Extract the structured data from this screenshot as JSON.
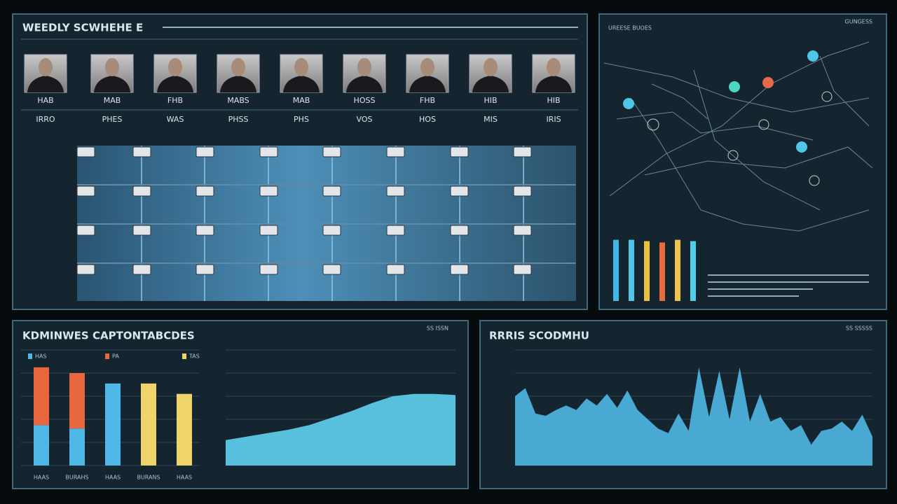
{
  "schedule": {
    "title": "WEEDLY SCWHEHE E",
    "people": [
      {
        "name": "HAB",
        "tag": "IRRO"
      },
      {
        "name": "MAB",
        "tag": "PHES"
      },
      {
        "name": "FHB",
        "tag": "WAS"
      },
      {
        "name": "MABS",
        "tag": "PHSS"
      },
      {
        "name": "MAB",
        "tag": "PHS"
      },
      {
        "name": "HOSS",
        "tag": "VOS"
      },
      {
        "name": "FHB",
        "tag": "HOS"
      },
      {
        "name": "HIB",
        "tag": "MIS"
      },
      {
        "name": "HIB",
        "tag": "IRIS"
      }
    ]
  },
  "map": {
    "title": "UREESE BUOES",
    "badge": "GUNGESS",
    "chart_data": {
      "type": "bar",
      "values": [
        92,
        92,
        90,
        88,
        92,
        90
      ],
      "colors": [
        "#3fb7e8",
        "#4fc6ea",
        "#e8c13f",
        "#e86a3f",
        "#f0c34a",
        "#4fd0ea"
      ],
      "ylim": [
        0,
        100
      ]
    }
  },
  "kpi": {
    "title": "KDMINWES CAPTONTABCDES",
    "badge": "SS ISSN",
    "chart_data": [
      {
        "type": "bar",
        "categories": [
          "HAAS",
          "BURAHS",
          "HAAS",
          "BURANS",
          "HAAS"
        ],
        "ylim": [
          0,
          100
        ],
        "series": [
          {
            "name": "HAS",
            "color": "#4fb8e6",
            "values": [
              35,
              32,
              71,
              0,
              0
            ]
          },
          {
            "name": "PA",
            "color": "#e8673f",
            "values": [
              50,
              48,
              0,
              0,
              0
            ]
          },
          {
            "name": "TAS",
            "color": "#efd46a",
            "values": [
              0,
              0,
              0,
              71,
              62
            ]
          }
        ]
      },
      {
        "type": "area",
        "color": "#5fd0f0",
        "ylim": [
          0,
          100
        ],
        "values": [
          22,
          25,
          28,
          31,
          35,
          41,
          47,
          54,
          60,
          62,
          62,
          61
        ]
      }
    ]
  },
  "trend": {
    "title": "RRRIS SCODMHU",
    "badge": "SS SSSSS",
    "chart_data": {
      "type": "area",
      "color": "#4fb8e6",
      "ylim": [
        0,
        100
      ],
      "values": [
        60,
        67,
        45,
        43,
        48,
        52,
        48,
        58,
        52,
        62,
        50,
        65,
        48,
        40,
        32,
        28,
        45,
        30,
        85,
        42,
        82,
        40,
        85,
        38,
        62,
        38,
        42,
        30,
        35,
        18,
        30,
        32,
        38,
        30,
        44,
        25
      ]
    }
  }
}
